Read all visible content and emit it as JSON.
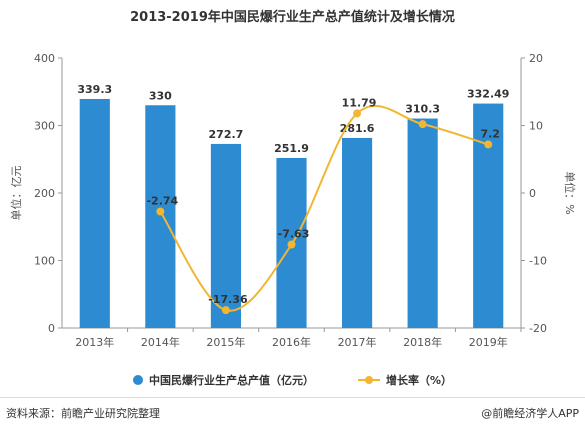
{
  "chart_data": {
    "type": "bar",
    "title": "2013-2019年中国民爆行业生产总产值统计及增长情况",
    "categories": [
      "2013年",
      "2014年",
      "2015年",
      "2016年",
      "2017年",
      "2018年",
      "2019年"
    ],
    "series": [
      {
        "name": "中国民爆行业生产总产值（亿元）",
        "type": "bar",
        "axis": "left",
        "values": [
          339.3,
          330,
          272.7,
          251.9,
          281.6,
          310.3,
          332.49
        ],
        "labels": [
          "339.3",
          "330",
          "272.7",
          "251.9",
          "281.6",
          "310.3",
          "332.49"
        ],
        "color": "#2d8bd2"
      },
      {
        "name": "增长率（%）",
        "type": "line",
        "axis": "right",
        "values": [
          null,
          -2.74,
          -17.36,
          -7.63,
          11.79,
          10.2,
          7.2
        ],
        "labels": [
          "",
          "-2.74",
          "-17.36",
          "-7.63",
          "11.79",
          "",
          "7.2"
        ],
        "color": "#f2b632"
      }
    ],
    "ylabel": "单位：亿元",
    "y2label": "单位：%",
    "ylim": [
      0,
      400
    ],
    "y2lim": [
      -20,
      20
    ],
    "yticks": [
      "0",
      "100",
      "200",
      "300",
      "400"
    ],
    "y2ticks": [
      "-20",
      "-10",
      "0",
      "10",
      "20"
    ],
    "grid": false,
    "legend": "bottom"
  },
  "legend": {
    "bar_label": "中国民爆行业生产总产值（亿元）",
    "line_label": "增长率（%）"
  },
  "footer": {
    "source": "资料来源：前瞻产业研究院整理",
    "brand": "@前瞻经济学人APP"
  }
}
